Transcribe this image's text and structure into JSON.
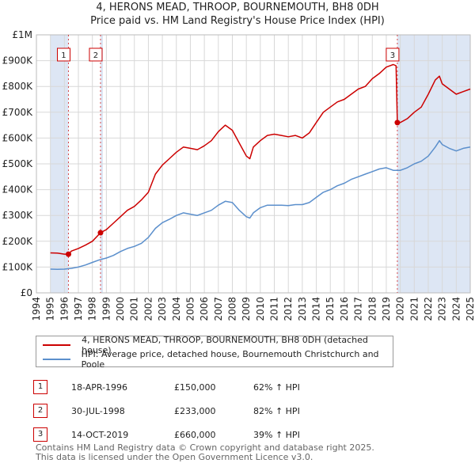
{
  "title_line1": "4, HERONS MEAD, THROOP, BOURNEMOUTH, BH8 0DH",
  "title_line2": "Price paid vs. HM Land Registry's House Price Index (HPI)",
  "legend": {
    "property": "4, HERONS MEAD, THROOP, BOURNEMOUTH, BH8 0DH (detached house)",
    "hpi": "HPI: Average price, detached house, Bournemouth Christchurch and Poole"
  },
  "colors": {
    "property": "#cc0000",
    "hpi": "#5b8fcc",
    "band": "#dde6f4",
    "grid": "#d8d8d8"
  },
  "transactions": [
    {
      "num": "1",
      "date": "18-APR-1996",
      "price": "£150,000",
      "hpi": "62% ↑ HPI"
    },
    {
      "num": "2",
      "date": "30-JUL-1998",
      "price": "£233,000",
      "hpi": "82% ↑ HPI"
    },
    {
      "num": "3",
      "date": "14-OCT-2019",
      "price": "£660,000",
      "hpi": "39% ↑ HPI"
    }
  ],
  "footer_line1": "Contains HM Land Registry data © Crown copyright and database right 2025.",
  "footer_line2": "This data is licensed under the Open Government Licence v3.0.",
  "chart_data": {
    "type": "line",
    "title": "4, HERONS MEAD, THROOP, BOURNEMOUTH, BH8 0DH — Price paid vs. HM Land Registry's House Price Index (HPI)",
    "xlabel": "",
    "ylabel": "",
    "xlim": [
      1994,
      2025
    ],
    "ylim": [
      0,
      1000000
    ],
    "x_ticks": [
      1994,
      1995,
      1996,
      1997,
      1998,
      1999,
      2000,
      2001,
      2002,
      2003,
      2004,
      2005,
      2006,
      2007,
      2008,
      2009,
      2010,
      2011,
      2012,
      2013,
      2014,
      2015,
      2016,
      2017,
      2018,
      2019,
      2020,
      2021,
      2022,
      2023,
      2024,
      2025
    ],
    "y_ticks": [
      {
        "value": 0,
        "label": "£0"
      },
      {
        "value": 100000,
        "label": "£100K"
      },
      {
        "value": 200000,
        "label": "£200K"
      },
      {
        "value": 300000,
        "label": "£300K"
      },
      {
        "value": 400000,
        "label": "£400K"
      },
      {
        "value": 500000,
        "label": "£500K"
      },
      {
        "value": 600000,
        "label": "£600K"
      },
      {
        "value": 700000,
        "label": "£700K"
      },
      {
        "value": 800000,
        "label": "£800K"
      },
      {
        "value": 900000,
        "label": "£900K"
      },
      {
        "value": 1000000,
        "label": "£1M"
      }
    ],
    "shaded_regions": [
      [
        1995.0,
        1996.29
      ],
      [
        1998.58,
        1998.75
      ],
      [
        2019.79,
        2025.0
      ]
    ],
    "sales": [
      {
        "num": "1",
        "x": 1996.29,
        "y": 150000
      },
      {
        "num": "2",
        "x": 1998.58,
        "y": 233000
      },
      {
        "num": "3",
        "x": 2019.79,
        "y": 660000
      }
    ],
    "series": [
      {
        "name": "4, HERONS MEAD, THROOP, BOURNEMOUTH, BH8 0DH (detached house)",
        "color": "#cc0000",
        "x": [
          1995.0,
          1995.5,
          1996.0,
          1996.29,
          1996.5,
          1997.0,
          1997.5,
          1998.0,
          1998.58,
          1999.0,
          1999.5,
          2000.0,
          2000.5,
          2001.0,
          2001.5,
          2002.0,
          2002.5,
          2003.0,
          2003.5,
          2004.0,
          2004.5,
          2005.0,
          2005.5,
          2006.0,
          2006.5,
          2007.0,
          2007.5,
          2008.0,
          2008.5,
          2009.0,
          2009.25,
          2009.5,
          2010.0,
          2010.5,
          2011.0,
          2011.5,
          2012.0,
          2012.5,
          2013.0,
          2013.5,
          2014.0,
          2014.5,
          2015.0,
          2015.5,
          2016.0,
          2016.5,
          2017.0,
          2017.5,
          2018.0,
          2018.5,
          2019.0,
          2019.5,
          2019.7,
          2019.79,
          2020.0,
          2020.5,
          2021.0,
          2021.5,
          2022.0,
          2022.5,
          2022.8,
          2023.0,
          2023.5,
          2024.0,
          2024.5,
          2025.0
        ],
        "y": [
          155000,
          154000,
          150000,
          150000,
          162000,
          172000,
          185000,
          200000,
          233000,
          245000,
          270000,
          295000,
          320000,
          335000,
          360000,
          390000,
          460000,
          495000,
          520000,
          545000,
          565000,
          560000,
          555000,
          570000,
          590000,
          625000,
          650000,
          630000,
          580000,
          530000,
          520000,
          565000,
          590000,
          610000,
          615000,
          610000,
          605000,
          610000,
          600000,
          620000,
          660000,
          700000,
          720000,
          740000,
          750000,
          770000,
          790000,
          800000,
          830000,
          850000,
          875000,
          885000,
          880000,
          660000,
          660000,
          675000,
          700000,
          720000,
          770000,
          825000,
          840000,
          810000,
          790000,
          770000,
          780000,
          790000
        ]
      },
      {
        "name": "HPI: Average price, detached house, Bournemouth Christchurch and Poole",
        "color": "#5b8fcc",
        "x": [
          1995.0,
          1995.5,
          1996.0,
          1996.5,
          1997.0,
          1997.5,
          1998.0,
          1998.5,
          1999.0,
          1999.5,
          2000.0,
          2000.5,
          2001.0,
          2001.5,
          2002.0,
          2002.5,
          2003.0,
          2003.5,
          2004.0,
          2004.5,
          2005.0,
          2005.5,
          2006.0,
          2006.5,
          2007.0,
          2007.5,
          2008.0,
          2008.5,
          2009.0,
          2009.25,
          2009.5,
          2010.0,
          2010.5,
          2011.0,
          2011.5,
          2012.0,
          2012.5,
          2013.0,
          2013.5,
          2014.0,
          2014.5,
          2015.0,
          2015.5,
          2016.0,
          2016.5,
          2017.0,
          2017.5,
          2018.0,
          2018.5,
          2019.0,
          2019.5,
          2020.0,
          2020.5,
          2021.0,
          2021.5,
          2022.0,
          2022.5,
          2022.8,
          2023.0,
          2023.5,
          2024.0,
          2024.5,
          2025.0
        ],
        "y": [
          92000,
          91000,
          92000,
          95000,
          100000,
          108000,
          118000,
          128000,
          135000,
          145000,
          160000,
          172000,
          180000,
          192000,
          215000,
          250000,
          272000,
          285000,
          300000,
          310000,
          305000,
          300000,
          310000,
          320000,
          340000,
          355000,
          350000,
          320000,
          295000,
          290000,
          310000,
          330000,
          340000,
          340000,
          340000,
          338000,
          342000,
          342000,
          350000,
          370000,
          390000,
          400000,
          415000,
          425000,
          440000,
          450000,
          460000,
          470000,
          480000,
          485000,
          475000,
          475000,
          485000,
          500000,
          510000,
          530000,
          565000,
          590000,
          575000,
          560000,
          550000,
          560000,
          565000
        ]
      }
    ]
  }
}
